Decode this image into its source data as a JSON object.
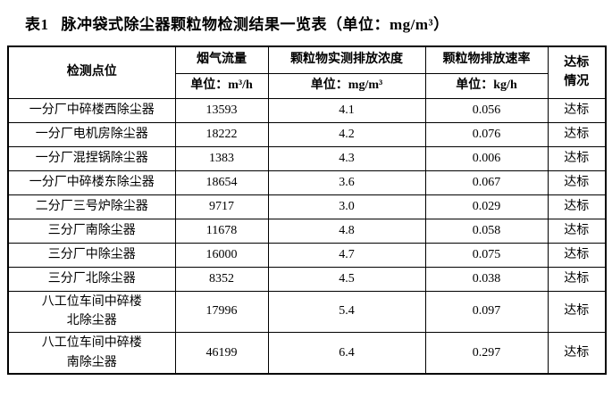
{
  "title": {
    "label": "表1",
    "text": "脉冲袋式除尘器颗粒物检测结果一览表（单位：mg/m³）"
  },
  "table": {
    "header": {
      "point": "检测点位",
      "columns": [
        {
          "name": "烟气流量",
          "unit": "单位：m³/h"
        },
        {
          "name": "颗粒物实测排放浓度",
          "unit": "单位：mg/m³"
        },
        {
          "name": "颗粒物排放速率",
          "unit": "单位：kg/h"
        }
      ],
      "compliance": "达标\n情况"
    },
    "rows": [
      {
        "point": "一分厂中碎楼西除尘器",
        "flow": "13593",
        "concentration": "4.1",
        "rate": "0.056",
        "status": "达标"
      },
      {
        "point": "一分厂电机房除尘器",
        "flow": "18222",
        "concentration": "4.2",
        "rate": "0.076",
        "status": "达标"
      },
      {
        "point": "一分厂混捏锅除尘器",
        "flow": "1383",
        "concentration": "4.3",
        "rate": "0.006",
        "status": "达标"
      },
      {
        "point": "一分厂中碎楼东除尘器",
        "flow": "18654",
        "concentration": "3.6",
        "rate": "0.067",
        "status": "达标"
      },
      {
        "point": "二分厂三号炉除尘器",
        "flow": "9717",
        "concentration": "3.0",
        "rate": "0.029",
        "status": "达标"
      },
      {
        "point": "三分厂南除尘器",
        "flow": "11678",
        "concentration": "4.8",
        "rate": "0.058",
        "status": "达标"
      },
      {
        "point": "三分厂中除尘器",
        "flow": "16000",
        "concentration": "4.7",
        "rate": "0.075",
        "status": "达标"
      },
      {
        "point": "三分厂北除尘器",
        "flow": "8352",
        "concentration": "4.5",
        "rate": "0.038",
        "status": "达标"
      },
      {
        "point": "八工位车间中碎楼\n北除尘器",
        "flow": "17996",
        "concentration": "5.4",
        "rate": "0.097",
        "status": "达标"
      },
      {
        "point": "八工位车间中碎楼\n南除尘器",
        "flow": "46199",
        "concentration": "6.4",
        "rate": "0.297",
        "status": "达标"
      }
    ]
  }
}
